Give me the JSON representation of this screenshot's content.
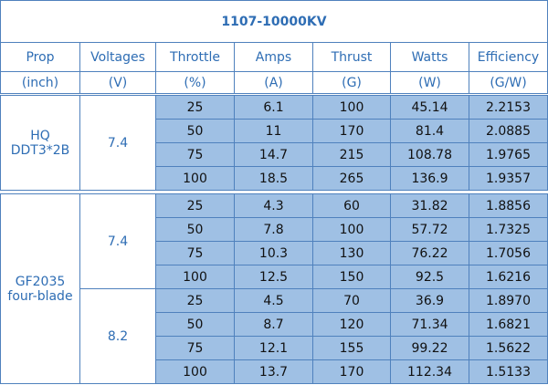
{
  "title": "1107-10000KV",
  "header": {
    "names": [
      "Prop",
      "Voltages",
      "Throttle",
      "Amps",
      "Thrust",
      "Watts",
      "Efficiency"
    ],
    "units": [
      "(inch)",
      "(V)",
      "(%)",
      "(A)",
      "(G)",
      "(W)",
      "(G/W)"
    ]
  },
  "groups": [
    {
      "prop": [
        "HQ",
        "DDT3*2B"
      ],
      "blocks": [
        {
          "voltage": "7.4",
          "rows": [
            [
              "25",
              "6.1",
              "100",
              "45.14",
              "2.2153"
            ],
            [
              "50",
              "11",
              "170",
              "81.4",
              "2.0885"
            ],
            [
              "75",
              "14.7",
              "215",
              "108.78",
              "1.9765"
            ],
            [
              "100",
              "18.5",
              "265",
              "136.9",
              "1.9357"
            ]
          ]
        }
      ]
    },
    {
      "prop": [
        "GF2035",
        "four-blade"
      ],
      "blocks": [
        {
          "voltage": "7.4",
          "rows": [
            [
              "25",
              "4.3",
              "60",
              "31.82",
              "1.8856"
            ],
            [
              "50",
              "7.8",
              "100",
              "57.72",
              "1.7325"
            ],
            [
              "75",
              "10.3",
              "130",
              "76.22",
              "1.7056"
            ],
            [
              "100",
              "12.5",
              "150",
              "92.5",
              "1.6216"
            ]
          ]
        },
        {
          "voltage": "8.2",
          "rows": [
            [
              "25",
              "4.5",
              "70",
              "36.9",
              "1.8970"
            ],
            [
              "50",
              "8.7",
              "120",
              "71.34",
              "1.6821"
            ],
            [
              "75",
              "12.1",
              "155",
              "99.22",
              "1.5622"
            ],
            [
              "100",
              "13.7",
              "170",
              "112.34",
              "1.5133"
            ]
          ]
        }
      ]
    }
  ]
}
